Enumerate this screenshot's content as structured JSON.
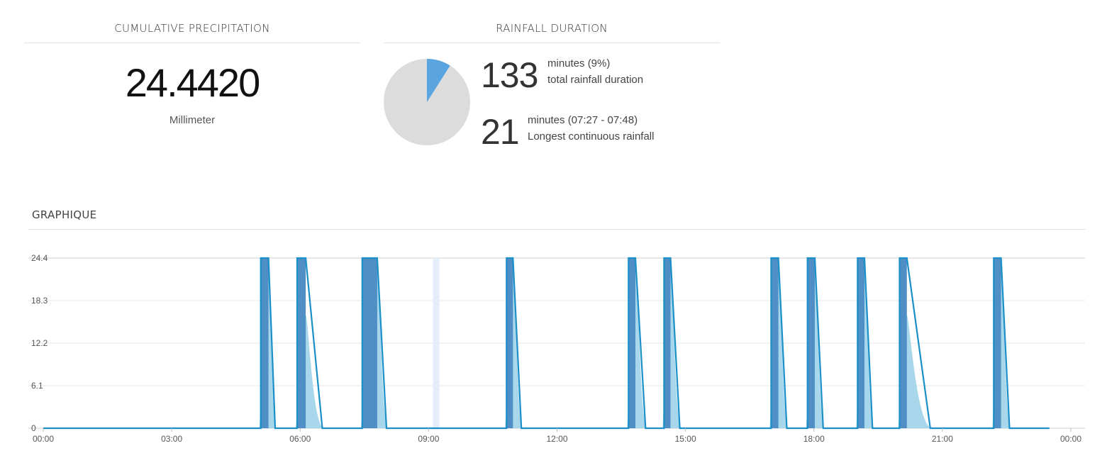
{
  "precipitation": {
    "title": "CUMULATIVE PRECIPITATION",
    "value": "24.4420",
    "unit": "Millimeter"
  },
  "duration": {
    "title": "RAINFALL DURATION",
    "total": {
      "value": "133",
      "line1": "minutes (9%)",
      "line2": "total rainfall duration"
    },
    "longest": {
      "value": "21",
      "line1": "minutes (07:27 - 07:48)",
      "line2": "Longest continuous rainfall"
    },
    "pie": {
      "fraction": 0.09,
      "rain_color": "#5aa5e0",
      "dry_color": "#dcdcdc"
    }
  },
  "graph": {
    "title": "GRAPHIQUE"
  },
  "chart_data": {
    "type": "area",
    "y_ticks": [
      "0",
      "6.1",
      "12.2",
      "18.3",
      "24.4"
    ],
    "ylim": [
      0,
      24.4
    ],
    "x_ticks": [
      "00:00",
      "03:00",
      "06:00",
      "09:00",
      "12:00",
      "15:00",
      "18:00",
      "21:00",
      "00:00"
    ],
    "xlim_hours": [
      0,
      24
    ],
    "x_end_hours": 23.5,
    "colors": {
      "bar": "#4f8fc6",
      "line": "#1a8fc8",
      "area": "#9fd3ea",
      "highlight": "#e3eef9",
      "grid": "#e6e6e6"
    },
    "highlight_hours": [
      9.1,
      9.25
    ],
    "events": [
      {
        "start": 5.08,
        "end": 5.26,
        "peak": 24.4,
        "area_peak": 24.4,
        "decay_end": 5.45
      },
      {
        "start": 5.93,
        "end": 6.13,
        "peak": 24.4,
        "area_peak": 16.2,
        "decay_end": 6.55
      },
      {
        "start": 7.45,
        "end": 7.8,
        "peak": 24.4,
        "area_peak": 24.4,
        "decay_end": 8.05
      },
      {
        "start": 10.82,
        "end": 10.97,
        "peak": 24.4,
        "area_peak": 24.4,
        "decay_end": 11.2
      },
      {
        "start": 13.67,
        "end": 13.83,
        "peak": 24.4,
        "area_peak": 24.4,
        "decay_end": 14.1
      },
      {
        "start": 14.5,
        "end": 14.65,
        "peak": 24.4,
        "area_peak": 24.4,
        "decay_end": 14.9
      },
      {
        "start": 17.0,
        "end": 17.17,
        "peak": 24.4,
        "area_peak": 24.4,
        "decay_end": 17.4
      },
      {
        "start": 17.85,
        "end": 18.02,
        "peak": 24.4,
        "area_peak": 24.4,
        "decay_end": 18.25
      },
      {
        "start": 19.02,
        "end": 19.18,
        "peak": 24.4,
        "area_peak": 24.4,
        "decay_end": 19.4
      },
      {
        "start": 20.0,
        "end": 20.17,
        "peak": 24.4,
        "area_peak": 16.2,
        "decay_end": 20.75
      },
      {
        "start": 22.2,
        "end": 22.37,
        "peak": 24.4,
        "area_peak": 24.4,
        "decay_end": 22.6
      }
    ]
  }
}
